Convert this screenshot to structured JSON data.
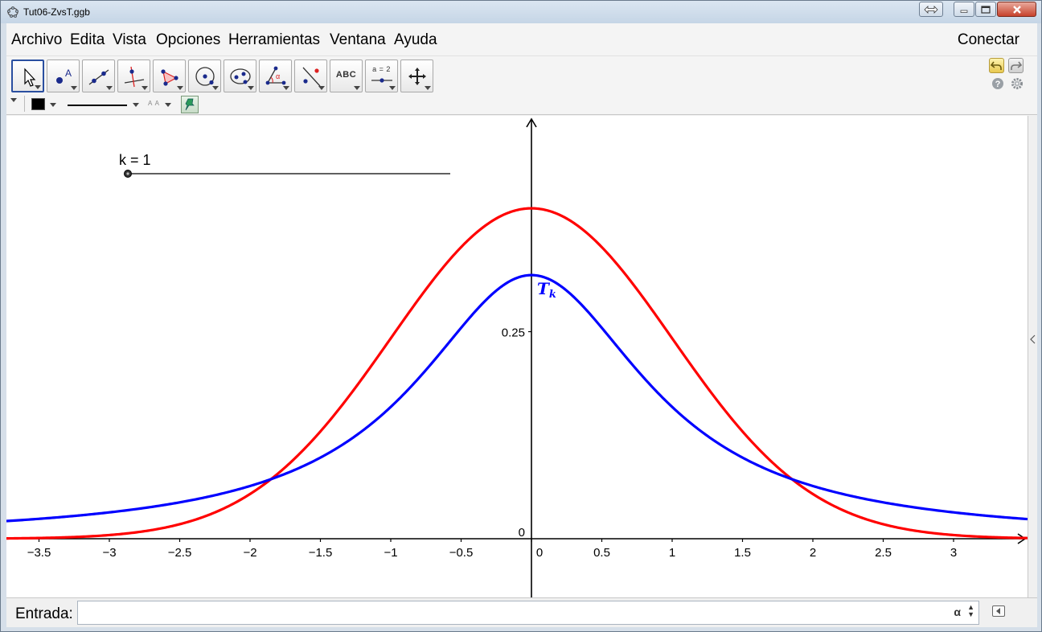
{
  "window": {
    "title": "Tut06-ZvsT.ggb"
  },
  "menu": {
    "items": [
      "Archivo",
      "Edita",
      "Vista",
      "Opciones",
      "Herramientas",
      "Ventana",
      "Ayuda"
    ],
    "connect": "Conectar"
  },
  "toolbar": {
    "tools": [
      {
        "icon": "move-arrow-icon",
        "selected": true
      },
      {
        "icon": "point-icon"
      },
      {
        "icon": "line-icon"
      },
      {
        "icon": "perpendicular-line-icon"
      },
      {
        "icon": "polygon-icon"
      },
      {
        "icon": "circle-icon"
      },
      {
        "icon": "ellipse-icon"
      },
      {
        "icon": "angle-icon"
      },
      {
        "icon": "reflect-icon"
      },
      {
        "icon": "text-icon",
        "label": "ABC"
      },
      {
        "icon": "slider-icon",
        "label": "a = 2"
      },
      {
        "icon": "move-graphics-icon"
      }
    ]
  },
  "stylebar": {
    "color": "#000000",
    "text_size_label": "A A"
  },
  "graphics": {
    "slider": {
      "label": "k = 1",
      "value": 1
    },
    "curve_label": "T",
    "curve_label_sub": "k",
    "y_axis_ticks": [
      "0.25"
    ],
    "origin_label": "0",
    "x_axis_ticks": [
      "−3.5",
      "−3",
      "−2.5",
      "−2",
      "−1.5",
      "−1",
      "−0.5",
      "0",
      "0.5",
      "1",
      "1.5",
      "2",
      "2.5",
      "3"
    ]
  },
  "input_bar": {
    "label": "Entrada:",
    "value": "",
    "alpha": "α"
  },
  "chart_data": {
    "type": "line",
    "x_range": [
      -3.7,
      3.5
    ],
    "y_range": [
      -0.11,
      0.41
    ],
    "grid": false,
    "series": [
      {
        "name": "",
        "color": "#ff0000",
        "function": "standard normal density",
        "k": null
      },
      {
        "name": "T",
        "color": "#0000ff",
        "function": "Student t density",
        "k": 1
      }
    ],
    "x_ticks": [
      -3.5,
      -3,
      -2.5,
      -2,
      -1.5,
      -1,
      -0.5,
      0,
      0.5,
      1,
      1.5,
      2,
      2.5,
      3
    ],
    "y_ticks": [
      0,
      0.25
    ]
  }
}
